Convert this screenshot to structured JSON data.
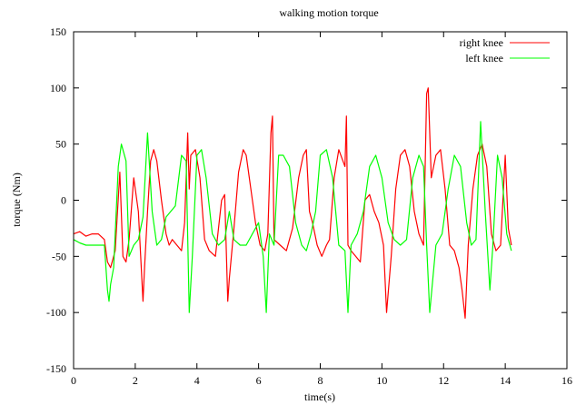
{
  "chart_data": {
    "type": "line",
    "title": "walking motion torque",
    "xlabel": "time(s)",
    "ylabel": "torque (Nm)",
    "xlim": [
      0,
      16
    ],
    "ylim": [
      -150,
      150
    ],
    "xticks": [
      0,
      2,
      4,
      6,
      8,
      10,
      12,
      14,
      16
    ],
    "yticks": [
      -150,
      -100,
      -50,
      0,
      50,
      100,
      150
    ],
    "grid": false,
    "legend_position": "top-right",
    "series": [
      {
        "name": "right knee",
        "color": "#ff0000",
        "x": [
          0,
          0.2,
          0.4,
          0.6,
          0.8,
          1.0,
          1.1,
          1.2,
          1.35,
          1.5,
          1.6,
          1.7,
          1.8,
          1.95,
          2.1,
          2.25,
          2.3,
          2.4,
          2.5,
          2.6,
          2.7,
          2.85,
          3.0,
          3.1,
          3.2,
          3.35,
          3.5,
          3.6,
          3.7,
          3.75,
          3.8,
          3.95,
          4.1,
          4.25,
          4.4,
          4.6,
          4.8,
          4.9,
          5.0,
          5.05,
          5.2,
          5.35,
          5.5,
          5.6,
          5.75,
          5.9,
          6.05,
          6.2,
          6.3,
          6.4,
          6.45,
          6.5,
          6.7,
          6.9,
          7.1,
          7.3,
          7.45,
          7.55,
          7.65,
          7.75,
          7.9,
          8.05,
          8.2,
          8.3,
          8.45,
          8.6,
          8.8,
          8.85,
          8.9,
          9.0,
          9.15,
          9.3,
          9.45,
          9.6,
          9.75,
          9.9,
          10.05,
          10.15,
          10.3,
          10.45,
          10.6,
          10.75,
          10.9,
          11.05,
          11.2,
          11.35,
          11.45,
          11.5,
          11.6,
          11.75,
          11.9,
          12.05,
          12.2,
          12.35,
          12.5,
          12.6,
          12.7,
          12.8,
          12.95,
          13.1,
          13.25,
          13.4,
          13.55,
          13.7,
          13.85,
          14.0,
          14.1,
          14.2
        ],
        "y": [
          -30,
          -28,
          -32,
          -30,
          -30,
          -35,
          -55,
          -60,
          -45,
          25,
          -50,
          -55,
          -35,
          20,
          -10,
          -90,
          -60,
          -10,
          35,
          45,
          35,
          0,
          -30,
          -40,
          -35,
          -40,
          -45,
          -20,
          60,
          10,
          40,
          45,
          20,
          -35,
          -45,
          -50,
          0,
          5,
          -90,
          -70,
          -25,
          25,
          45,
          40,
          10,
          -20,
          -40,
          -45,
          -30,
          60,
          75,
          -35,
          -40,
          -45,
          -25,
          20,
          40,
          45,
          -10,
          -20,
          -40,
          -50,
          -40,
          -35,
          20,
          45,
          30,
          75,
          -40,
          -45,
          -50,
          -55,
          0,
          5,
          -10,
          -20,
          -40,
          -100,
          -50,
          10,
          40,
          45,
          30,
          -10,
          -30,
          -40,
          95,
          100,
          20,
          40,
          45,
          10,
          -40,
          -45,
          -60,
          -80,
          -105,
          -40,
          10,
          40,
          50,
          30,
          -30,
          -45,
          -40,
          40,
          -25,
          -40
        ]
      },
      {
        "name": "left knee",
        "color": "#00ff00",
        "x": [
          0,
          0.2,
          0.4,
          0.6,
          0.8,
          1.0,
          1.1,
          1.15,
          1.2,
          1.3,
          1.45,
          1.55,
          1.7,
          1.8,
          1.95,
          2.1,
          2.25,
          2.4,
          2.55,
          2.7,
          2.85,
          3.0,
          3.15,
          3.3,
          3.5,
          3.65,
          3.75,
          3.85,
          4.0,
          4.15,
          4.3,
          4.5,
          4.7,
          4.9,
          5.05,
          5.2,
          5.4,
          5.6,
          5.8,
          6.0,
          6.15,
          6.25,
          6.35,
          6.5,
          6.65,
          6.8,
          7.0,
          7.2,
          7.4,
          7.55,
          7.7,
          7.85,
          8.0,
          8.2,
          8.4,
          8.6,
          8.8,
          8.9,
          9.0,
          9.2,
          9.4,
          9.6,
          9.8,
          10.0,
          10.2,
          10.4,
          10.6,
          10.8,
          11.0,
          11.2,
          11.35,
          11.45,
          11.55,
          11.75,
          11.95,
          12.15,
          12.35,
          12.55,
          12.75,
          12.9,
          13.05,
          13.2,
          13.35,
          13.5,
          13.6,
          13.75,
          13.9,
          14.05,
          14.2
        ],
        "y": [
          -35,
          -38,
          -40,
          -40,
          -40,
          -40,
          -80,
          -90,
          -75,
          -60,
          30,
          50,
          35,
          -50,
          -40,
          -35,
          -15,
          60,
          -10,
          -40,
          -35,
          -15,
          -10,
          -5,
          40,
          35,
          -100,
          -50,
          40,
          45,
          20,
          -30,
          -40,
          -35,
          -10,
          -35,
          -40,
          -40,
          -30,
          -20,
          -50,
          -100,
          -30,
          -40,
          40,
          40,
          30,
          -20,
          -40,
          -45,
          -30,
          -10,
          40,
          45,
          20,
          -40,
          -45,
          -100,
          -40,
          -30,
          -10,
          30,
          40,
          20,
          -20,
          -35,
          -40,
          -35,
          20,
          40,
          30,
          -40,
          -100,
          -40,
          -30,
          10,
          40,
          30,
          -20,
          -40,
          -35,
          70,
          -10,
          -80,
          -40,
          40,
          20,
          -30,
          -45
        ]
      }
    ]
  }
}
